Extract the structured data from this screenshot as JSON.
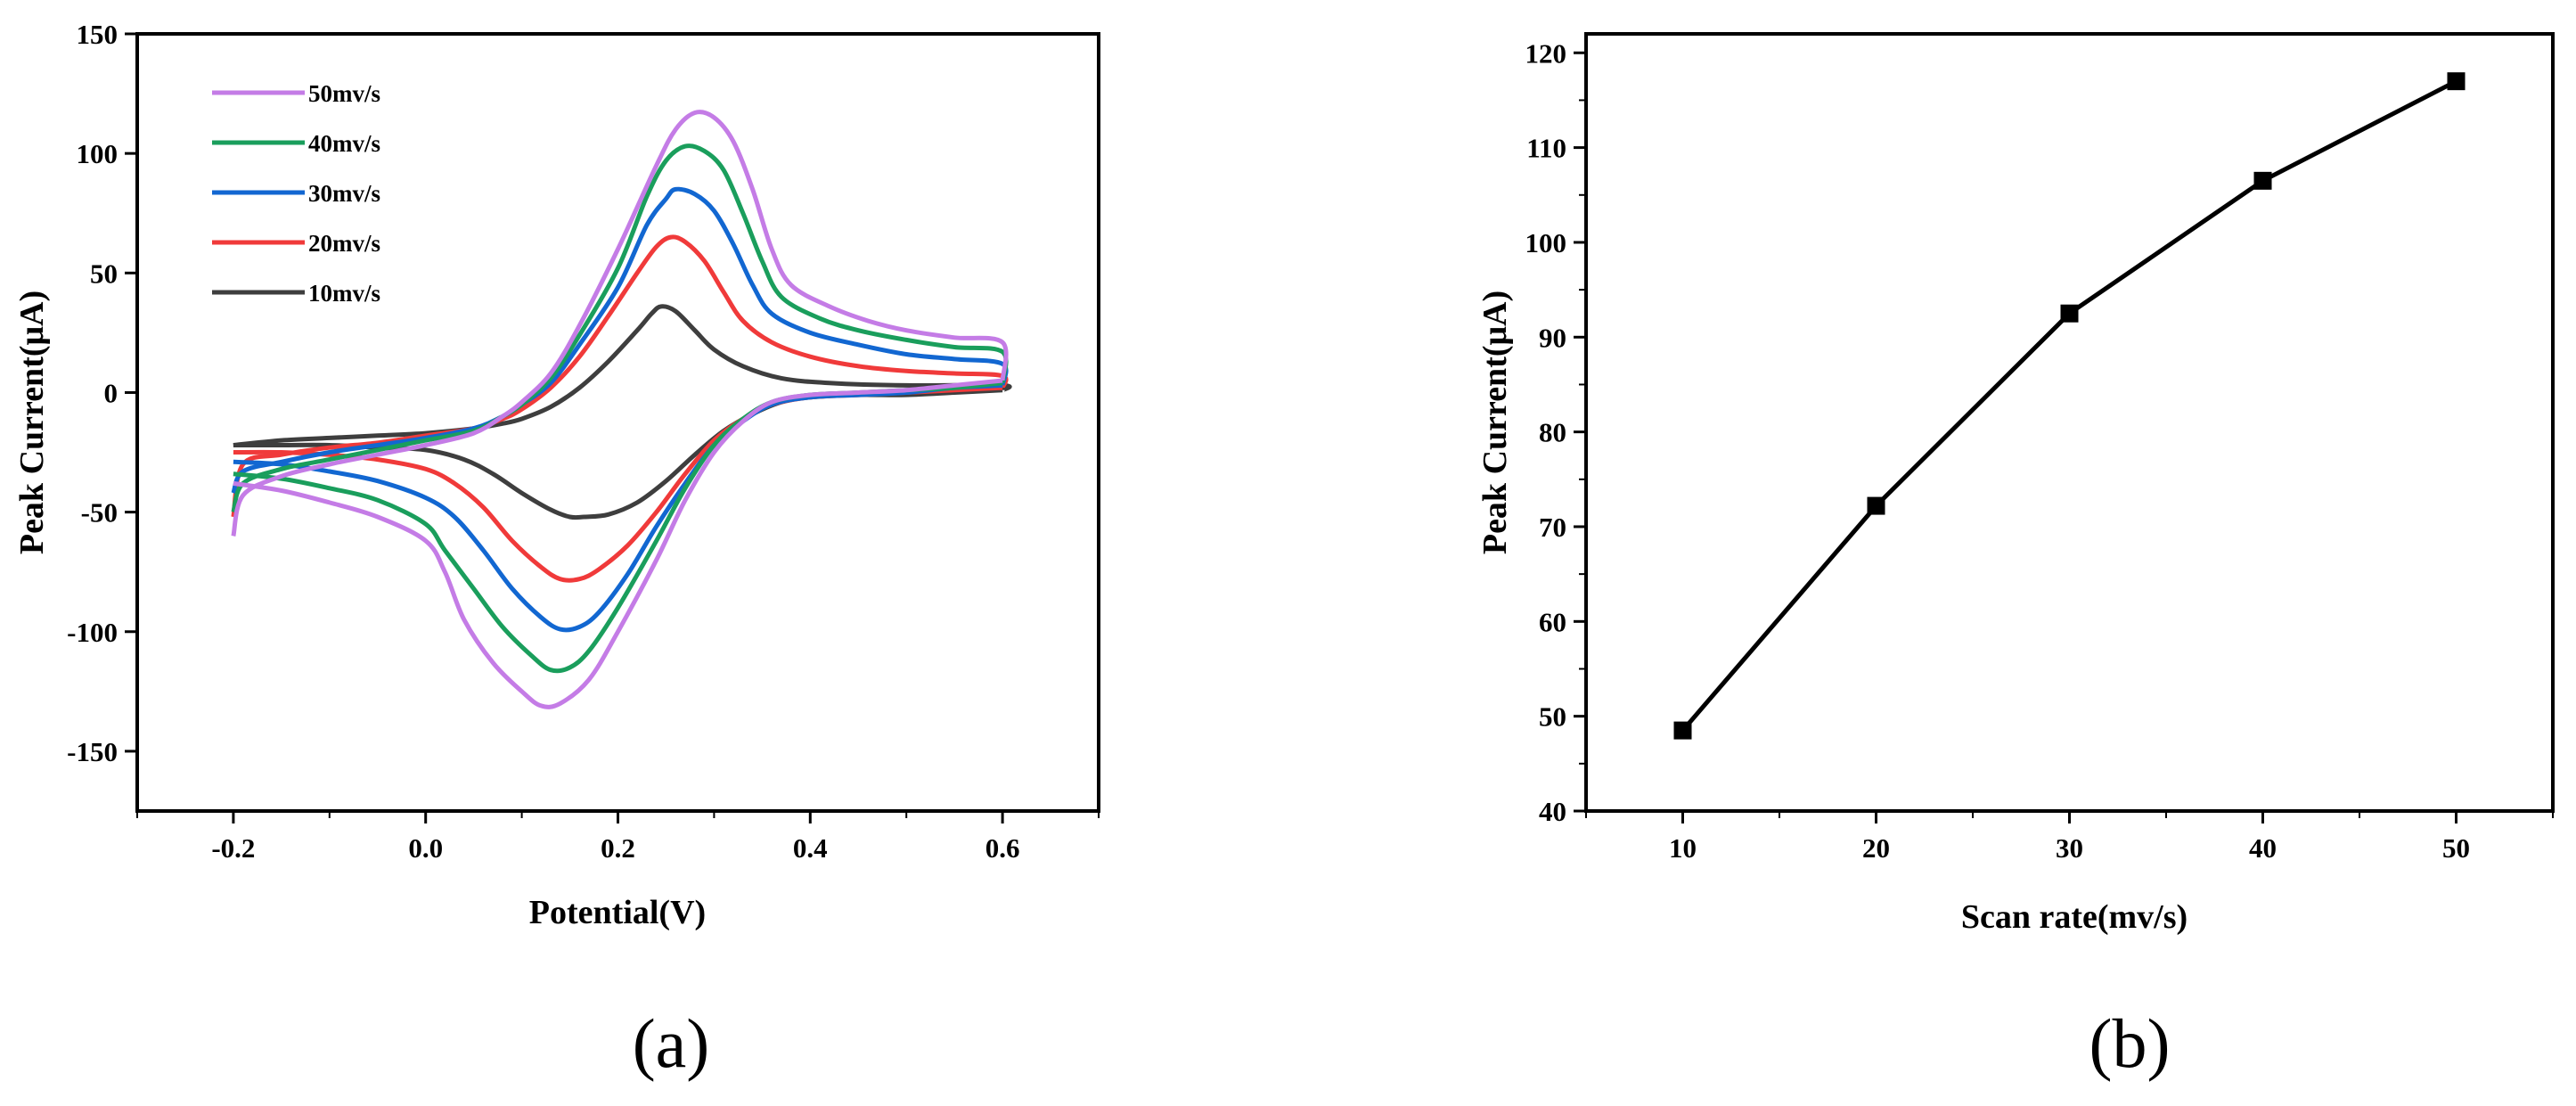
{
  "chart_data": [
    {
      "type": "line",
      "panel_label": "(a)",
      "xlabel": "Potential(V)",
      "ylabel": "Peak Current(μA)",
      "xlim": [
        -0.3,
        0.7
      ],
      "ylim": [
        -175,
        150
      ],
      "xticks": [
        -0.2,
        0.0,
        0.2,
        0.4,
        0.6
      ],
      "xtick_labels": [
        "-0.2",
        "0.0",
        "0.2",
        "0.4",
        "0.6"
      ],
      "yticks": [
        150,
        100,
        50,
        0,
        -50,
        -100,
        -150
      ],
      "ytick_labels": [
        "150",
        "100",
        "50",
        "0",
        "-50",
        "-100",
        "-150"
      ],
      "grid": false,
      "legend_position": "top-left",
      "series": [
        {
          "name": "50mv/s",
          "color": "#c47ce6",
          "forward": [
            [
              -0.2,
              -60
            ],
            [
              -0.19,
              -43
            ],
            [
              -0.15,
              -35
            ],
            [
              -0.1,
              -30
            ],
            [
              -0.05,
              -26
            ],
            [
              0.0,
              -22
            ],
            [
              0.05,
              -17
            ],
            [
              0.08,
              -10
            ],
            [
              0.1,
              -4
            ],
            [
              0.13,
              8
            ],
            [
              0.16,
              28
            ],
            [
              0.2,
              60
            ],
            [
              0.24,
              95
            ],
            [
              0.26,
              110
            ],
            [
              0.28,
              117
            ],
            [
              0.3,
              115
            ],
            [
              0.32,
              105
            ],
            [
              0.34,
              85
            ],
            [
              0.36,
              60
            ],
            [
              0.38,
              45
            ],
            [
              0.42,
              36
            ],
            [
              0.46,
              30
            ],
            [
              0.5,
              26
            ],
            [
              0.55,
              23
            ],
            [
              0.6,
              21
            ],
            [
              0.6,
              5
            ]
          ],
          "reverse": [
            [
              0.6,
              5
            ],
            [
              0.55,
              3
            ],
            [
              0.5,
              1
            ],
            [
              0.45,
              0
            ],
            [
              0.4,
              -1
            ],
            [
              0.36,
              -4
            ],
            [
              0.33,
              -12
            ],
            [
              0.3,
              -25
            ],
            [
              0.27,
              -45
            ],
            [
              0.24,
              -70
            ],
            [
              0.2,
              -100
            ],
            [
              0.17,
              -120
            ],
            [
              0.14,
              -130
            ],
            [
              0.12,
              -131
            ],
            [
              0.1,
              -125
            ],
            [
              0.07,
              -113
            ],
            [
              0.04,
              -95
            ],
            [
              0.02,
              -75
            ],
            [
              0.0,
              -62
            ],
            [
              -0.05,
              -52
            ],
            [
              -0.1,
              -46
            ],
            [
              -0.15,
              -41
            ],
            [
              -0.2,
              -38
            ]
          ]
        },
        {
          "name": "40mv/s",
          "color": "#1a9e5c",
          "forward": [
            [
              -0.2,
              -50
            ],
            [
              -0.19,
              -38
            ],
            [
              -0.15,
              -32
            ],
            [
              -0.1,
              -28
            ],
            [
              -0.05,
              -24
            ],
            [
              0.0,
              -20
            ],
            [
              0.05,
              -16
            ],
            [
              0.08,
              -10
            ],
            [
              0.1,
              -5
            ],
            [
              0.13,
              6
            ],
            [
              0.16,
              24
            ],
            [
              0.2,
              52
            ],
            [
              0.23,
              82
            ],
            [
              0.25,
              97
            ],
            [
              0.27,
              103
            ],
            [
              0.29,
              101
            ],
            [
              0.31,
              93
            ],
            [
              0.33,
              75
            ],
            [
              0.35,
              55
            ],
            [
              0.37,
              40
            ],
            [
              0.41,
              31
            ],
            [
              0.45,
              26
            ],
            [
              0.5,
              22
            ],
            [
              0.55,
              19
            ],
            [
              0.6,
              17
            ],
            [
              0.6,
              4
            ]
          ],
          "reverse": [
            [
              0.6,
              4
            ],
            [
              0.55,
              2
            ],
            [
              0.5,
              1
            ],
            [
              0.45,
              0
            ],
            [
              0.4,
              -1
            ],
            [
              0.36,
              -4
            ],
            [
              0.33,
              -11
            ],
            [
              0.3,
              -22
            ],
            [
              0.27,
              -40
            ],
            [
              0.24,
              -62
            ],
            [
              0.2,
              -90
            ],
            [
              0.17,
              -108
            ],
            [
              0.15,
              -115
            ],
            [
              0.13,
              -116
            ],
            [
              0.11,
              -110
            ],
            [
              0.08,
              -98
            ],
            [
              0.05,
              -82
            ],
            [
              0.02,
              -66
            ],
            [
              0.0,
              -55
            ],
            [
              -0.05,
              -45
            ],
            [
              -0.1,
              -40
            ],
            [
              -0.15,
              -36
            ],
            [
              -0.2,
              -34
            ]
          ]
        },
        {
          "name": "30mv/s",
          "color": "#1267d1",
          "forward": [
            [
              -0.2,
              -42
            ],
            [
              -0.19,
              -33
            ],
            [
              -0.15,
              -29
            ],
            [
              -0.1,
              -25
            ],
            [
              -0.05,
              -22
            ],
            [
              0.0,
              -19
            ],
            [
              0.05,
              -15
            ],
            [
              0.08,
              -10
            ],
            [
              0.1,
              -5
            ],
            [
              0.13,
              4
            ],
            [
              0.16,
              20
            ],
            [
              0.2,
              44
            ],
            [
              0.23,
              70
            ],
            [
              0.25,
              81
            ],
            [
              0.26,
              85
            ],
            [
              0.28,
              83
            ],
            [
              0.3,
              76
            ],
            [
              0.32,
              62
            ],
            [
              0.34,
              45
            ],
            [
              0.36,
              33
            ],
            [
              0.4,
              25
            ],
            [
              0.45,
              20
            ],
            [
              0.5,
              16
            ],
            [
              0.55,
              14
            ],
            [
              0.6,
              12
            ],
            [
              0.6,
              3
            ]
          ],
          "reverse": [
            [
              0.6,
              3
            ],
            [
              0.55,
              2
            ],
            [
              0.5,
              0
            ],
            [
              0.45,
              -1
            ],
            [
              0.4,
              -2
            ],
            [
              0.36,
              -5
            ],
            [
              0.33,
              -12
            ],
            [
              0.3,
              -22
            ],
            [
              0.27,
              -38
            ],
            [
              0.24,
              -56
            ],
            [
              0.21,
              -76
            ],
            [
              0.18,
              -92
            ],
            [
              0.16,
              -98
            ],
            [
              0.14,
              -99
            ],
            [
              0.12,
              -94
            ],
            [
              0.09,
              -82
            ],
            [
              0.06,
              -66
            ],
            [
              0.03,
              -52
            ],
            [
              0.0,
              -44
            ],
            [
              -0.05,
              -37
            ],
            [
              -0.1,
              -33
            ],
            [
              -0.15,
              -30
            ],
            [
              -0.2,
              -29
            ]
          ]
        },
        {
          "name": "20mv/s",
          "color": "#f03a3a",
          "forward": [
            [
              -0.2,
              -52
            ],
            [
              -0.19,
              -30
            ],
            [
              -0.15,
              -26
            ],
            [
              -0.1,
              -23
            ],
            [
              -0.05,
              -21
            ],
            [
              0.0,
              -18
            ],
            [
              0.05,
              -15
            ],
            [
              0.08,
              -11
            ],
            [
              0.1,
              -7
            ],
            [
              0.13,
              2
            ],
            [
              0.16,
              15
            ],
            [
              0.19,
              32
            ],
            [
              0.22,
              50
            ],
            [
              0.24,
              61
            ],
            [
              0.255,
              65
            ],
            [
              0.27,
              63
            ],
            [
              0.29,
              55
            ],
            [
              0.31,
              42
            ],
            [
              0.33,
              30
            ],
            [
              0.36,
              21
            ],
            [
              0.4,
              15
            ],
            [
              0.45,
              11
            ],
            [
              0.5,
              9
            ],
            [
              0.55,
              8
            ],
            [
              0.6,
              7
            ],
            [
              0.6,
              2
            ]
          ],
          "reverse": [
            [
              0.6,
              2
            ],
            [
              0.55,
              1
            ],
            [
              0.5,
              0
            ],
            [
              0.45,
              -1
            ],
            [
              0.4,
              -2
            ],
            [
              0.36,
              -5
            ],
            [
              0.33,
              -11
            ],
            [
              0.3,
              -20
            ],
            [
              0.27,
              -34
            ],
            [
              0.24,
              -50
            ],
            [
              0.21,
              -64
            ],
            [
              0.18,
              -74
            ],
            [
              0.16,
              -78
            ],
            [
              0.14,
              -78
            ],
            [
              0.12,
              -73
            ],
            [
              0.09,
              -62
            ],
            [
              0.06,
              -48
            ],
            [
              0.03,
              -38
            ],
            [
              0.0,
              -32
            ],
            [
              -0.05,
              -28
            ],
            [
              -0.1,
              -26
            ],
            [
              -0.15,
              -25
            ],
            [
              -0.2,
              -25
            ]
          ]
        },
        {
          "name": "10mv/s",
          "color": "#3e3e3e",
          "forward": [
            [
              -0.2,
              -22
            ],
            [
              -0.15,
              -20
            ],
            [
              -0.1,
              -19
            ],
            [
              -0.05,
              -18
            ],
            [
              0.0,
              -17
            ],
            [
              0.05,
              -15
            ],
            [
              0.08,
              -13
            ],
            [
              0.1,
              -11
            ],
            [
              0.13,
              -6
            ],
            [
              0.16,
              2
            ],
            [
              0.19,
              13
            ],
            [
              0.22,
              26
            ],
            [
              0.235,
              33
            ],
            [
              0.245,
              36
            ],
            [
              0.26,
              34
            ],
            [
              0.28,
              26
            ],
            [
              0.3,
              18
            ],
            [
              0.33,
              11
            ],
            [
              0.37,
              6
            ],
            [
              0.42,
              4
            ],
            [
              0.5,
              3
            ],
            [
              0.6,
              3
            ],
            [
              0.6,
              1
            ]
          ],
          "reverse": [
            [
              0.6,
              1
            ],
            [
              0.55,
              0
            ],
            [
              0.5,
              -1
            ],
            [
              0.45,
              -1
            ],
            [
              0.4,
              -2
            ],
            [
              0.37,
              -4
            ],
            [
              0.34,
              -9
            ],
            [
              0.31,
              -16
            ],
            [
              0.28,
              -26
            ],
            [
              0.25,
              -37
            ],
            [
              0.22,
              -46
            ],
            [
              0.19,
              -51
            ],
            [
              0.165,
              -52
            ],
            [
              0.15,
              -52
            ],
            [
              0.13,
              -49
            ],
            [
              0.1,
              -42
            ],
            [
              0.07,
              -34
            ],
            [
              0.04,
              -28
            ],
            [
              0.0,
              -24
            ],
            [
              -0.05,
              -23
            ],
            [
              -0.1,
              -22
            ],
            [
              -0.15,
              -22
            ],
            [
              -0.2,
              -22
            ]
          ]
        }
      ]
    },
    {
      "type": "line",
      "panel_label": "(b)",
      "xlabel": "Scan rate(mv/s)",
      "ylabel": "Peak Current(μA)",
      "xlim": [
        5,
        55
      ],
      "ylim": [
        40,
        122
      ],
      "xticks": [
        10,
        20,
        30,
        40,
        50
      ],
      "xtick_labels": [
        "10",
        "20",
        "30",
        "40",
        "50"
      ],
      "yticks": [
        40,
        50,
        60,
        70,
        80,
        90,
        100,
        110,
        120
      ],
      "ytick_labels": [
        "40",
        "50",
        "60",
        "70",
        "80",
        "90",
        "100",
        "110",
        "120"
      ],
      "grid": false,
      "marker": "square",
      "color": "#000000",
      "x": [
        10,
        20,
        30,
        40,
        50
      ],
      "y": [
        48.5,
        72.2,
        92.5,
        106.5,
        117.0
      ]
    }
  ]
}
